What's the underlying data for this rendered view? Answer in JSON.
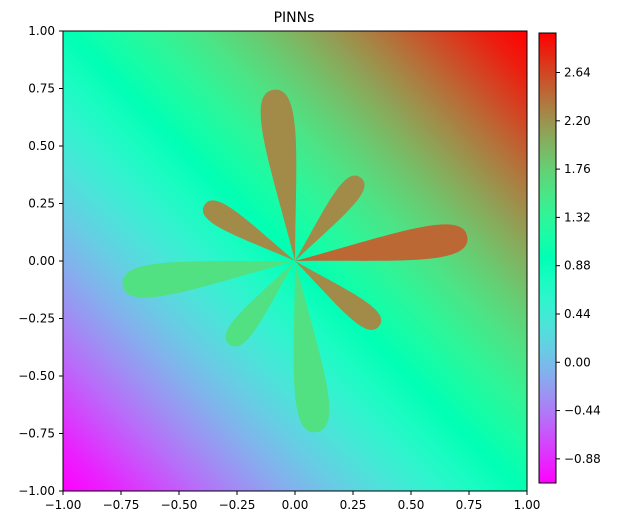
{
  "chart_data": {
    "type": "heatmap",
    "title": "PINNs",
    "xlabel": "",
    "ylabel": "",
    "xlim": [
      -1.0,
      1.0
    ],
    "ylim": [
      -1.0,
      1.0
    ],
    "x_ticks": [
      "−1.00",
      "−0.75",
      "−0.50",
      "−0.25",
      "0.00",
      "0.25",
      "0.50",
      "0.75",
      "1.00"
    ],
    "y_ticks": [
      "−1.00",
      "−0.75",
      "−0.50",
      "−0.25",
      "0.00",
      "0.25",
      "0.50",
      "0.75",
      "1.00"
    ],
    "x_tick_values": [
      -1.0,
      -0.75,
      -0.5,
      -0.25,
      0.0,
      0.25,
      0.5,
      0.75,
      1.0
    ],
    "y_tick_values": [
      -1.0,
      -0.75,
      -0.5,
      -0.25,
      0.0,
      0.25,
      0.5,
      0.75,
      1.0
    ],
    "colorbar": {
      "range": [
        -1.1,
        3.0
      ],
      "tick_values": [
        -0.88,
        -0.44,
        0.0,
        0.44,
        0.88,
        1.32,
        1.76,
        2.2,
        2.64
      ],
      "tick_labels": [
        "−0.88",
        "−0.44",
        "0.00",
        "0.44",
        "0.88",
        "1.32",
        "1.76",
        "2.20",
        "2.64"
      ]
    },
    "colormap": "rainbow",
    "grid": false
  }
}
